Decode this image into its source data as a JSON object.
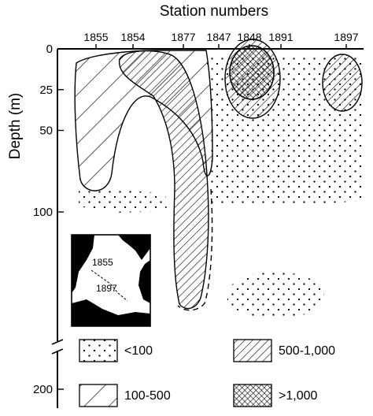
{
  "chart_data": {
    "type": "contour",
    "xlabel": "Station numbers",
    "ylabel": "Depth (m)",
    "stations": [
      "1855",
      "1854",
      "1877",
      "1847",
      "1848",
      "1891",
      "1897"
    ],
    "depth_ticks": [
      0,
      25,
      50,
      100,
      200
    ],
    "ylim": [
      0,
      200
    ],
    "y_axis_break": true,
    "legend": [
      {
        "label": "<100",
        "pattern": "dots"
      },
      {
        "label": "100-500",
        "pattern": "sparse-diagonal-hatch"
      },
      {
        "label": "500-1,000",
        "pattern": "dense-diagonal-hatch"
      },
      {
        "label": ">1,000",
        "pattern": "cross-hatch"
      }
    ],
    "inset_map": {
      "labels": [
        "1855",
        "1897"
      ]
    }
  }
}
